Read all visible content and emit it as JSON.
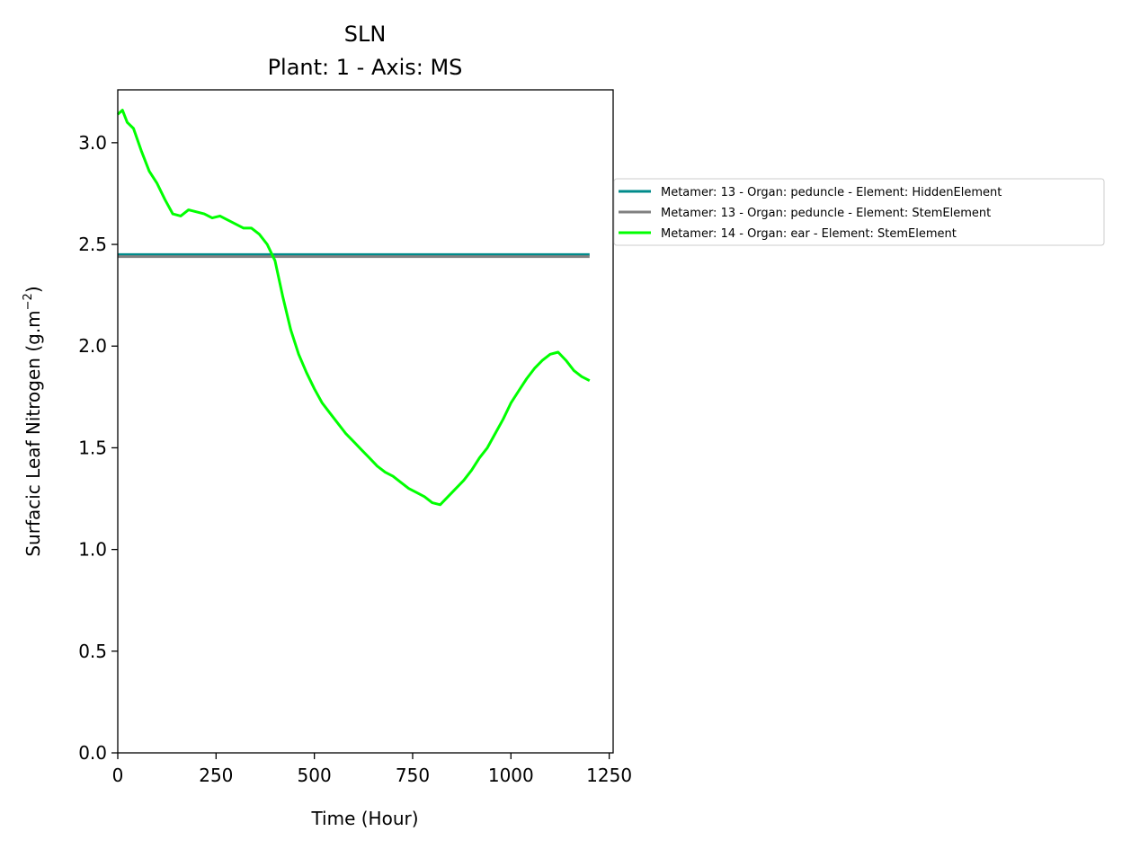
{
  "chart_data": {
    "type": "line",
    "title_line1": "SLN",
    "title_line2": "Plant: 1 - Axis: MS",
    "xlabel": "Time (Hour)",
    "ylabel_prefix": "Surfacic Leaf Nitrogen (g.m",
    "ylabel_sup": "−2",
    "ylabel_suffix": ")",
    "xlim": [
      0,
      1260
    ],
    "ylim": [
      0,
      3.26
    ],
    "xticks": [
      {
        "value": 0,
        "label": "0"
      },
      {
        "value": 250,
        "label": "250"
      },
      {
        "value": 500,
        "label": "500"
      },
      {
        "value": 750,
        "label": "750"
      },
      {
        "value": 1000,
        "label": "1000"
      },
      {
        "value": 1250,
        "label": "1250"
      }
    ],
    "yticks": [
      {
        "value": 0.0,
        "label": "0.0"
      },
      {
        "value": 0.5,
        "label": "0.5"
      },
      {
        "value": 1.0,
        "label": "1.0"
      },
      {
        "value": 1.5,
        "label": "1.5"
      },
      {
        "value": 2.0,
        "label": "2.0"
      },
      {
        "value": 2.5,
        "label": "2.5"
      },
      {
        "value": 3.0,
        "label": "3.0"
      }
    ],
    "grid": false,
    "legend_position": "outside-right",
    "series": [
      {
        "name": "Metamer: 13 - Organ: peduncle - Element: HiddenElement",
        "color": "#008b8b",
        "x": [
          0,
          1200
        ],
        "y": [
          2.45,
          2.45
        ]
      },
      {
        "name": "Metamer: 13 - Organ: peduncle - Element: StemElement",
        "color": "#808080",
        "x": [
          0,
          1200
        ],
        "y": [
          2.44,
          2.44
        ]
      },
      {
        "name": "Metamer: 14 - Organ: ear - Element: StemElement",
        "color": "#00ff00",
        "x": [
          0,
          12,
          24,
          40,
          60,
          80,
          100,
          120,
          140,
          160,
          180,
          200,
          220,
          240,
          260,
          280,
          300,
          320,
          340,
          360,
          380,
          400,
          420,
          440,
          460,
          480,
          500,
          520,
          540,
          560,
          580,
          600,
          620,
          640,
          660,
          680,
          700,
          720,
          740,
          760,
          780,
          800,
          820,
          840,
          860,
          880,
          900,
          920,
          940,
          960,
          980,
          1000,
          1020,
          1040,
          1060,
          1080,
          1100,
          1120,
          1140,
          1160,
          1180,
          1200
        ],
        "y": [
          3.14,
          3.16,
          3.1,
          3.07,
          2.96,
          2.86,
          2.8,
          2.72,
          2.65,
          2.64,
          2.67,
          2.66,
          2.65,
          2.63,
          2.64,
          2.62,
          2.6,
          2.58,
          2.58,
          2.55,
          2.5,
          2.42,
          2.24,
          2.08,
          1.96,
          1.87,
          1.79,
          1.72,
          1.67,
          1.62,
          1.57,
          1.53,
          1.49,
          1.45,
          1.41,
          1.38,
          1.36,
          1.33,
          1.3,
          1.28,
          1.26,
          1.23,
          1.22,
          1.26,
          1.3,
          1.34,
          1.39,
          1.45,
          1.5,
          1.57,
          1.64,
          1.72,
          1.78,
          1.84,
          1.89,
          1.93,
          1.96,
          1.97,
          1.93,
          1.88,
          1.85,
          1.83
        ]
      }
    ]
  }
}
